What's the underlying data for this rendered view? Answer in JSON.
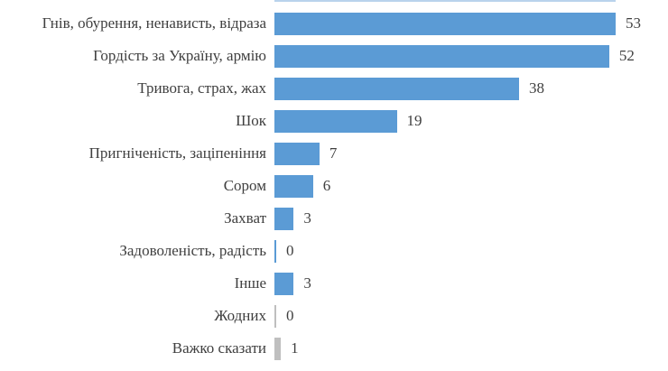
{
  "chart_data": {
    "type": "bar",
    "orientation": "horizontal",
    "title": "",
    "xlabel": "",
    "ylabel": "",
    "xlim": [
      0,
      56
    ],
    "grid": false,
    "legend": false,
    "data_labels": true,
    "categories": [
      "Гнів, обурення, ненависть, відраза",
      "Гордість за Україну, армію",
      "Тривога, страх, жах",
      "Шок",
      "Пригніченість, заціпеніння",
      "Сором",
      "Захват",
      "Задоволеність, радість",
      "Інше",
      "Жодних",
      "Важко сказати"
    ],
    "values": [
      53,
      52,
      38,
      19,
      7,
      6,
      3,
      0,
      3,
      0,
      1
    ],
    "bar_colors": [
      "#5B9BD5",
      "#5B9BD5",
      "#5B9BD5",
      "#5B9BD5",
      "#5B9BD5",
      "#5B9BD5",
      "#5B9BD5",
      "#5B9BD5",
      "#5B9BD5",
      "#BFBFBF",
      "#BFBFBF"
    ],
    "colors": {
      "bar_blue": "#5B9BD5",
      "bar_gray": "#BFBFBF",
      "label_text": "#3F3F3F",
      "background": "#FFFFFF",
      "cropped_top_strip": "#7FAEDC"
    }
  }
}
